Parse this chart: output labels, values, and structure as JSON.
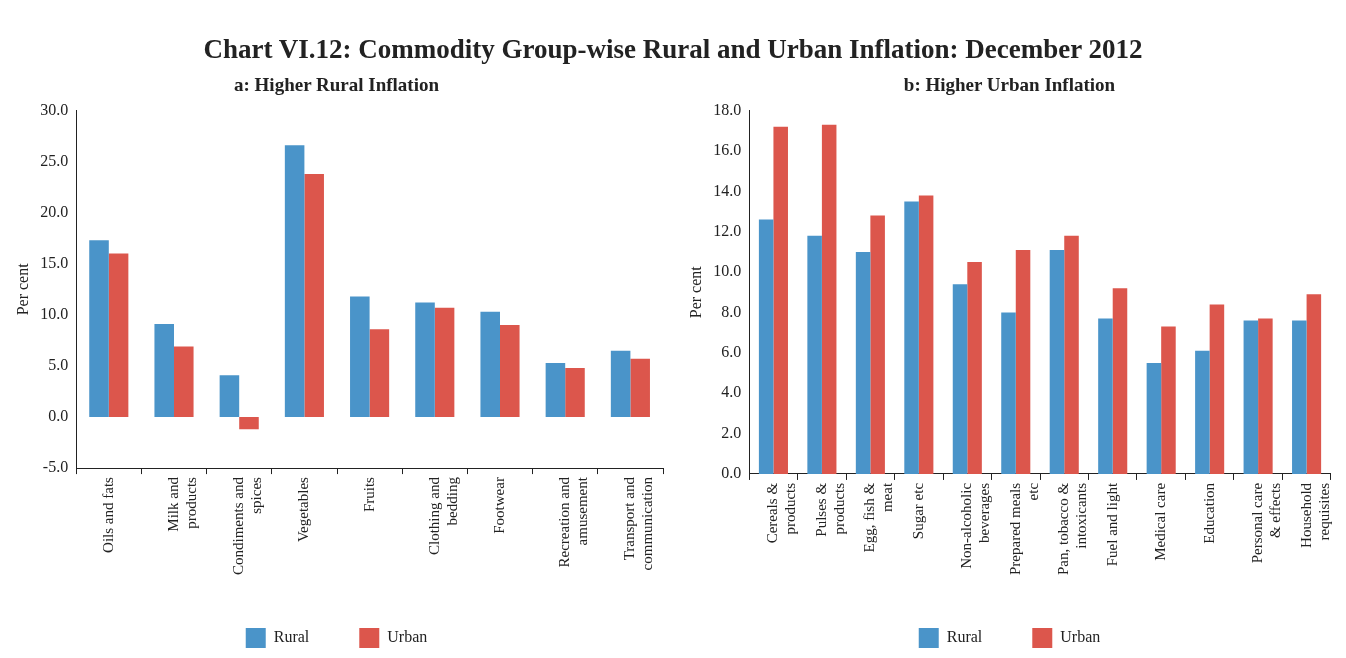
{
  "chart_data": [
    {
      "type": "bar",
      "title": "Chart VI.12: Commodity Group-wise Rural and Urban Inflation: December 2012",
      "subtitle": "a: Higher Rural Inflation",
      "ylabel": "Per cent",
      "categories": [
        "Oils and fats",
        "Milk and products",
        "Condiments and spices",
        "Vegetables",
        "Fruits",
        "Clothing and bedding",
        "Footwear",
        "Recreation and amusement",
        "Transport and communication"
      ],
      "series": [
        {
          "name": "Rural",
          "color": "#4a94c9",
          "values": [
            17.3,
            9.1,
            4.1,
            26.6,
            11.8,
            11.2,
            10.3,
            5.3,
            6.5
          ]
        },
        {
          "name": "Urban",
          "color": "#dc564c",
          "values": [
            16.0,
            6.9,
            -1.2,
            23.8,
            8.6,
            10.7,
            9.0,
            4.8,
            5.7
          ]
        }
      ],
      "ylim": [
        -5,
        30
      ],
      "yticks": [
        {
          "value": -5,
          "label": "-5.0"
        },
        {
          "value": 0,
          "label": "0.0"
        },
        {
          "value": 5,
          "label": "5.0"
        },
        {
          "value": 10,
          "label": "10.0"
        },
        {
          "value": 15,
          "label": "15.0"
        },
        {
          "value": 20,
          "label": "20.0"
        },
        {
          "value": 25,
          "label": "25.0"
        },
        {
          "value": 30,
          "label": "30.0"
        }
      ],
      "grid": false,
      "legend": "bottom"
    },
    {
      "type": "bar",
      "subtitle": "b: Higher Urban Inflation",
      "ylabel": "Per cent",
      "categories": [
        "Cereals & products",
        "Pulses & products",
        "Egg, fish & meat",
        "Sugar etc",
        "Non-alcoholic beverages",
        "Prepared meals etc",
        "Pan, tobacco & intoxicants",
        "Fuel and light",
        "Medical care",
        "Education",
        "Personal care & effects",
        "Household requisites"
      ],
      "series": [
        {
          "name": "Rural",
          "color": "#4a94c9",
          "values": [
            12.6,
            11.8,
            11.0,
            13.5,
            9.4,
            8.0,
            11.1,
            7.7,
            5.5,
            6.1,
            7.6,
            7.6
          ]
        },
        {
          "name": "Urban",
          "color": "#dc564c",
          "values": [
            17.2,
            17.3,
            12.8,
            13.8,
            10.5,
            11.1,
            11.8,
            9.2,
            7.3,
            8.4,
            7.7,
            8.9
          ]
        }
      ],
      "ylim": [
        0,
        18
      ],
      "yticks": [
        {
          "value": 0,
          "label": "0.0"
        },
        {
          "value": 2,
          "label": "2.0"
        },
        {
          "value": 4,
          "label": "4.0"
        },
        {
          "value": 6,
          "label": "6.0"
        },
        {
          "value": 8,
          "label": "8.0"
        },
        {
          "value": 10,
          "label": "10.0"
        },
        {
          "value": 12,
          "label": "12.0"
        },
        {
          "value": 14,
          "label": "14.0"
        },
        {
          "value": 16,
          "label": "16.0"
        },
        {
          "value": 18,
          "label": "18.0"
        }
      ],
      "grid": false,
      "legend": "bottom"
    }
  ]
}
